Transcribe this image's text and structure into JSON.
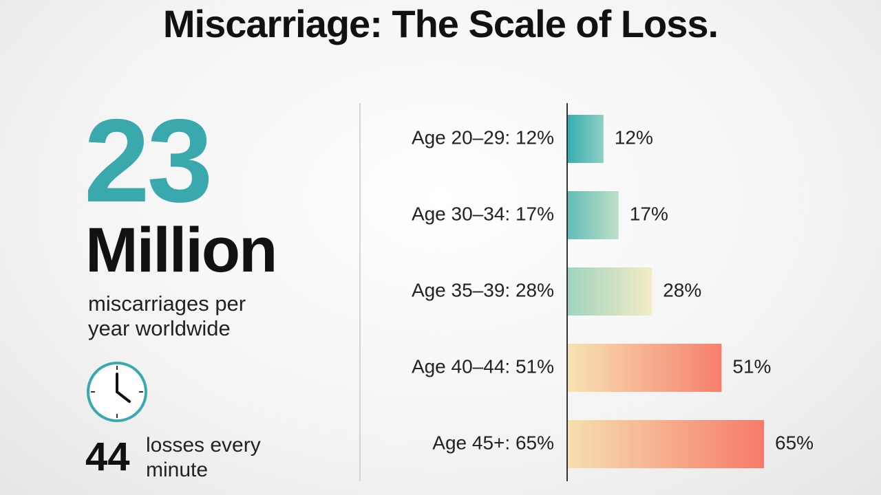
{
  "title": "Miscarriage: The Scale of Loss.",
  "headline": {
    "number": "23",
    "unit": "Million",
    "caption": "miscarriages per year worldwide"
  },
  "rate": {
    "number": "44",
    "caption": "losses every minute"
  },
  "chart_data": {
    "type": "bar",
    "orientation": "horizontal",
    "categories": [
      "Age 20–29: 12%",
      "Age 30–34: 17%",
      "Age 35–39: 28%",
      "Age 40–44: 51%",
      "Age 45+: 65%"
    ],
    "values": [
      12,
      17,
      28,
      51,
      65
    ],
    "value_labels": [
      "12%",
      "17%",
      "28%",
      "51%",
      "65%"
    ],
    "colors": [
      [
        "#36adb0",
        "#8fcfc4"
      ],
      [
        "#62bcb8",
        "#bfe0c8"
      ],
      [
        "#9fd4c0",
        "#f3ecc4"
      ],
      [
        "#f5e3b4",
        "#f77f6c"
      ],
      [
        "#f5e0b0",
        "#f77a68"
      ]
    ]
  }
}
